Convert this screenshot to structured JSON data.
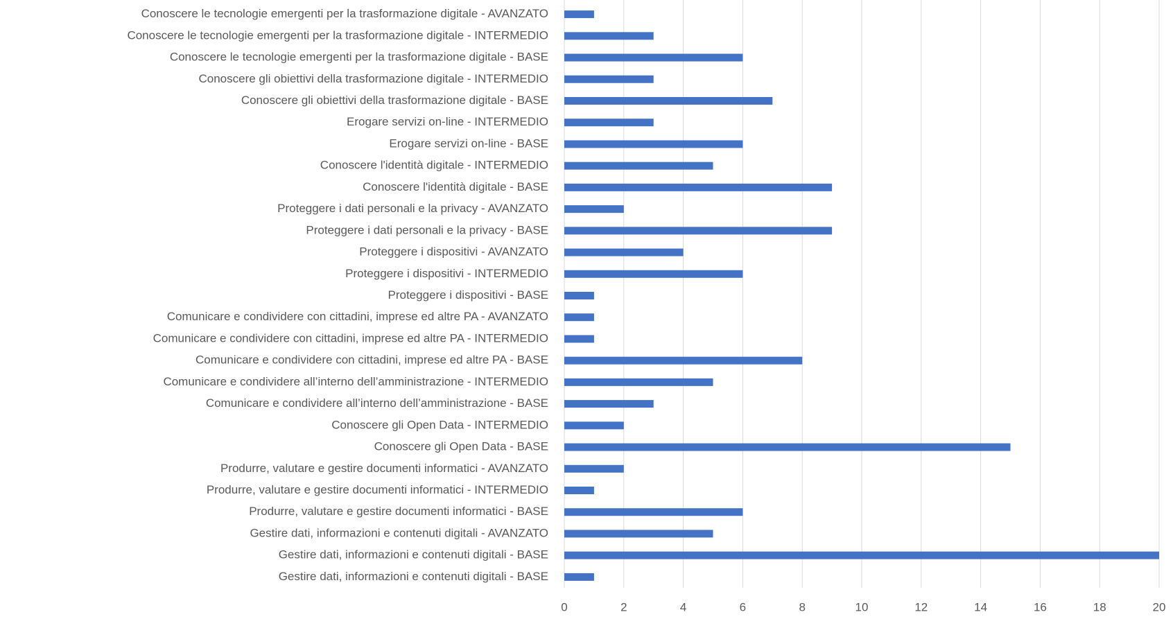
{
  "chart_data": {
    "type": "bar",
    "orientation": "horizontal",
    "color": "#4472c4",
    "grid": true,
    "categories": [
      "Conoscere le tecnologie emergenti per la trasformazione digitale - AVANZATO",
      "Conoscere le tecnologie emergenti per la trasformazione digitale - INTERMEDIO",
      "Conoscere le tecnologie emergenti per la trasformazione digitale - BASE",
      "Conoscere gli obiettivi della trasformazione digitale - INTERMEDIO",
      "Conoscere gli obiettivi della trasformazione digitale - BASE",
      "Erogare servizi on-line - INTERMEDIO",
      "Erogare servizi on-line - BASE",
      "Conoscere l'identità digitale - INTERMEDIO",
      "Conoscere l'identità digitale - BASE",
      "Proteggere i dati personali e la privacy - AVANZATO",
      "Proteggere i dati personali e la privacy - BASE",
      "Proteggere i dispositivi  - AVANZATO",
      "Proteggere i dispositivi  - INTERMEDIO",
      "Proteggere i dispositivi  - BASE",
      "Comunicare e condividere con cittadini, imprese ed altre PA - AVANZATO",
      "Comunicare e condividere con cittadini, imprese ed altre PA - INTERMEDIO",
      "Comunicare e condividere con cittadini, imprese ed altre PA - BASE",
      "Comunicare e condividere all’interno dell’amministrazione  - INTERMEDIO",
      "Comunicare e condividere all’interno dell’amministrazione  - BASE",
      "Conoscere gli Open Data - INTERMEDIO",
      "Conoscere gli Open Data - BASE",
      "Produrre, valutare e gestire documenti informatici - AVANZATO",
      "Produrre, valutare e gestire documenti informatici - INTERMEDIO",
      "Produrre, valutare e gestire documenti informatici - BASE",
      "Gestire dati, informazioni e contenuti digitali - AVANZATO",
      "Gestire dati, informazioni e contenuti digitali - BASE",
      "Gestire dati, informazioni e contenuti digitali - BASE"
    ],
    "values": [
      1,
      3,
      6,
      3,
      7,
      3,
      6,
      5,
      9,
      2,
      9,
      4,
      6,
      1,
      1,
      1,
      8,
      5,
      3,
      2,
      15,
      2,
      1,
      6,
      5,
      20,
      1
    ],
    "xlim": [
      0,
      20
    ],
    "xticks": [
      0,
      2,
      4,
      6,
      8,
      10,
      12,
      14,
      16,
      18,
      20
    ]
  }
}
